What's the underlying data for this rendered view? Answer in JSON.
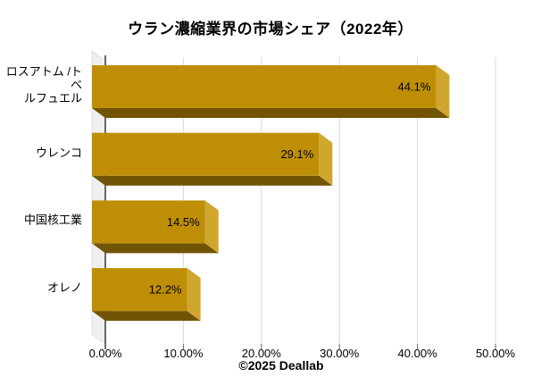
{
  "title": "ウラン濃縮業界の市場シェア（2022年）",
  "footer": "©2025 Deallab",
  "chart_data": {
    "type": "bar",
    "orientation": "horizontal",
    "effect": "3d",
    "title": "ウラン濃縮業界の市場シェア（2022年）",
    "categories": [
      "ロスアトム /トベ\nルフュエル",
      "ウレンコ",
      "中国核工業",
      "オレノ"
    ],
    "values": [
      44.1,
      29.1,
      14.5,
      12.2
    ],
    "value_labels": [
      "44.1%",
      "29.1%",
      "14.5%",
      "12.2%"
    ],
    "x_ticks": [
      "0.00%",
      "10.00%",
      "20.00%",
      "30.00%",
      "40.00%",
      "50.00%"
    ],
    "x_tick_values": [
      0,
      10,
      20,
      30,
      40,
      50
    ],
    "xlim": [
      0,
      50
    ],
    "grid": true,
    "legend": false,
    "colors": {
      "bar_front": "#BE8F06",
      "bar_side": "#D0A62E",
      "bar_bottom": "#715405",
      "wall": "#EFEFEF",
      "wall_edge": "#E2E2E2",
      "gridline": "#D9D9D9",
      "axis": "#1A1A1A",
      "tick": "#666666",
      "text": "#000000"
    }
  }
}
